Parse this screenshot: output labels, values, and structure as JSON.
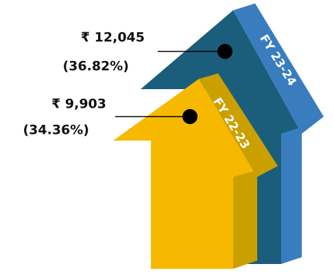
{
  "items": [
    {
      "label": "FY 23-24",
      "amount": "₹ 12,045",
      "share": "(36.82%)"
    },
    {
      "label": "FY 22-23",
      "amount": "₹ 9,903",
      "share": "(34.36%)"
    }
  ]
}
